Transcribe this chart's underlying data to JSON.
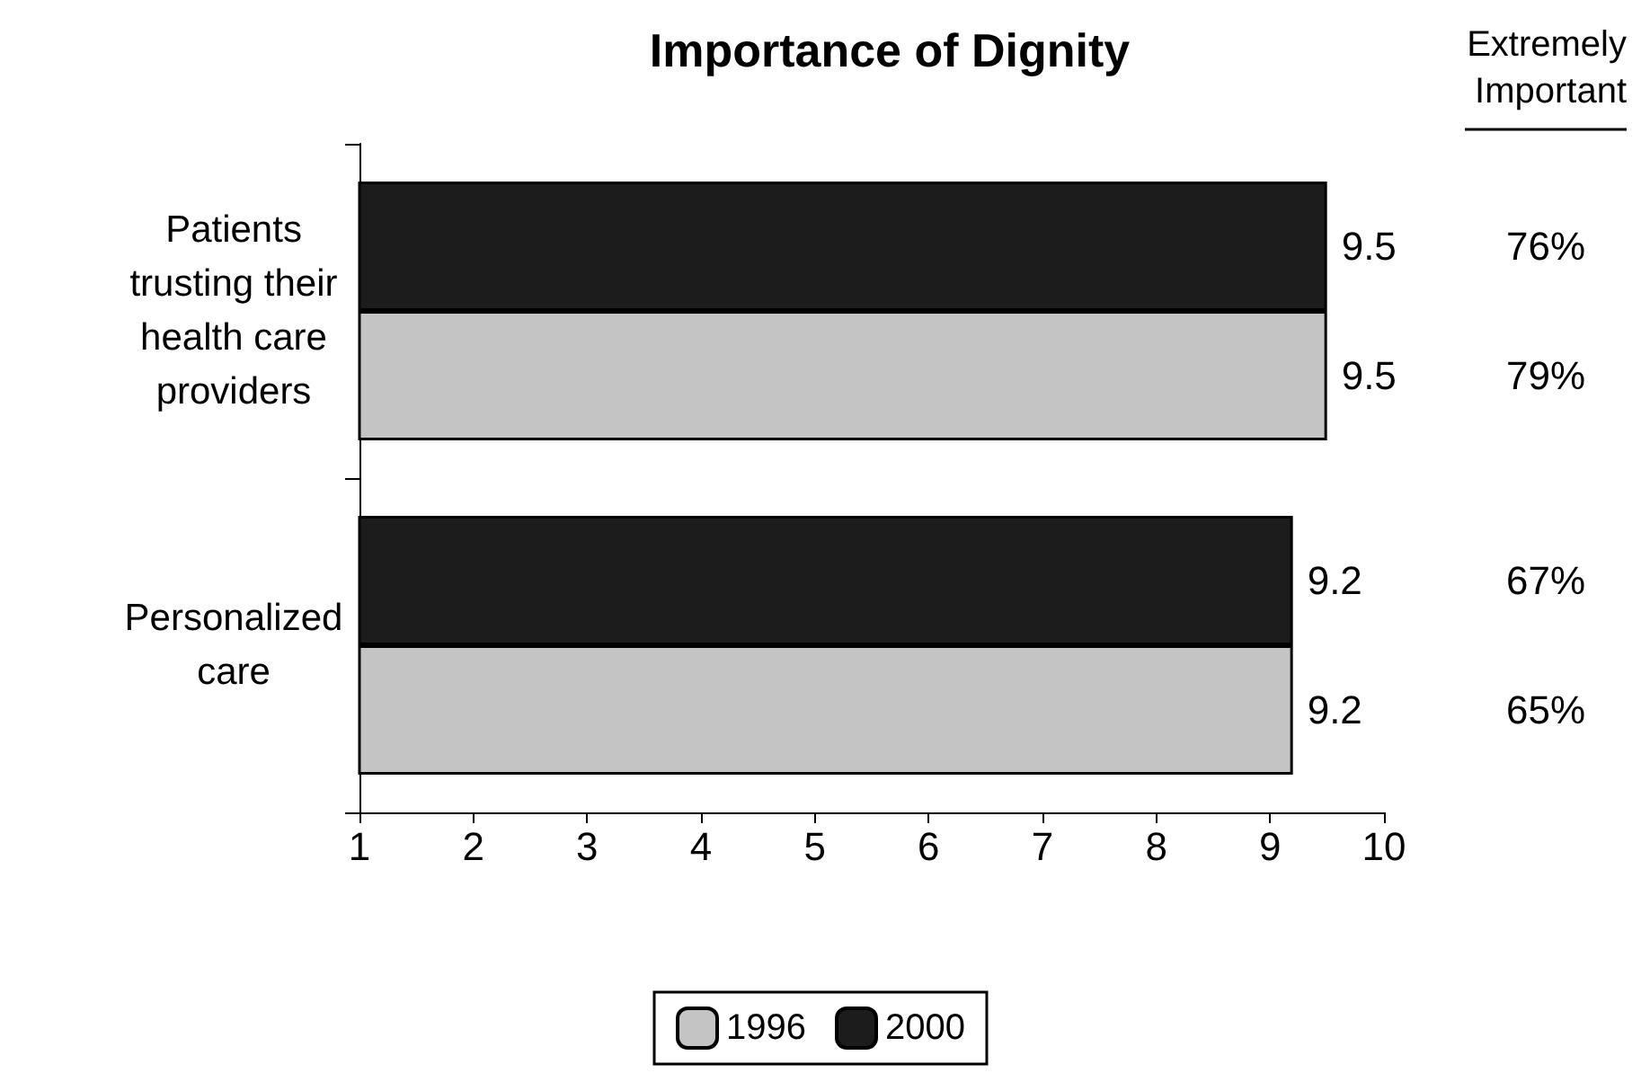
{
  "chart_data": {
    "type": "bar",
    "orientation": "horizontal",
    "title": "Importance of Dignity",
    "categories": [
      "Patients\ntrusting their\nhealth care\nproviders",
      "Personalized\ncare"
    ],
    "series": [
      {
        "name": "2000",
        "color": "#1c1c1c",
        "values": [
          9.5,
          9.2
        ]
      },
      {
        "name": "1996",
        "color": "#c4c4c4",
        "values": [
          9.5,
          9.2
        ]
      }
    ],
    "xlim": [
      1,
      10
    ],
    "xticks": [
      1,
      2,
      3,
      4,
      5,
      6,
      7,
      8,
      9,
      10
    ],
    "grid": false,
    "legend": "bottom",
    "data_labels": true,
    "annotations": [
      "Extremely\nImportant",
      "76%",
      "79%",
      "67%",
      "65%"
    ]
  }
}
